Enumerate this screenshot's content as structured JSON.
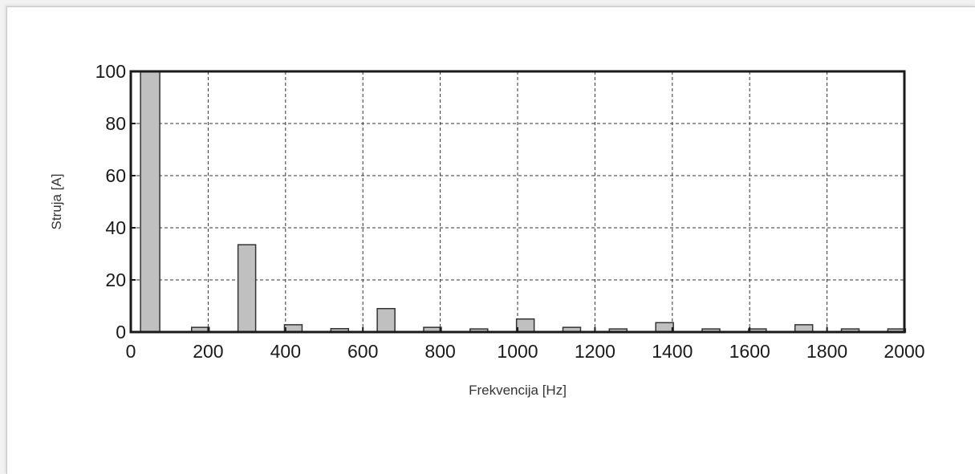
{
  "chart_data": {
    "type": "bar",
    "title": "",
    "xlabel": "Frekvencija [Hz]",
    "ylabel": "Struja [A]",
    "xlim": [
      0,
      2000
    ],
    "ylim": [
      0,
      100
    ],
    "xticks": [
      0,
      200,
      400,
      600,
      800,
      1000,
      1200,
      1400,
      1600,
      1800,
      2000
    ],
    "yticks": [
      0,
      20,
      40,
      60,
      80,
      100
    ],
    "grid": true,
    "grid_style": "dashed",
    "bar_color": "#c0c0c0",
    "bar_edge_color": "#333333",
    "x": [
      50,
      150,
      250,
      350,
      450,
      550,
      650,
      750,
      850,
      950,
      1050,
      1150,
      1250,
      1350,
      1450,
      1550,
      1650,
      1750,
      1850,
      1950
    ],
    "values": [
      100,
      0,
      33.5,
      0,
      2.8,
      0,
      1.3,
      0,
      9.0,
      0,
      1.8,
      0,
      1.2,
      0,
      5.0,
      0,
      1.8,
      0,
      1.2,
      0
    ],
    "bar_x": [
      50,
      180,
      300,
      420,
      540,
      660,
      780,
      900,
      1020,
      1140,
      1260,
      1380,
      1500,
      1620,
      1740,
      1860,
      1980
    ],
    "bar_values": [
      100,
      1.8,
      33.5,
      2.8,
      1.3,
      9.0,
      1.8,
      1.2,
      5.0,
      1.8,
      1.2,
      3.6,
      1.2,
      1.2,
      2.8,
      1.2,
      1.2
    ]
  }
}
